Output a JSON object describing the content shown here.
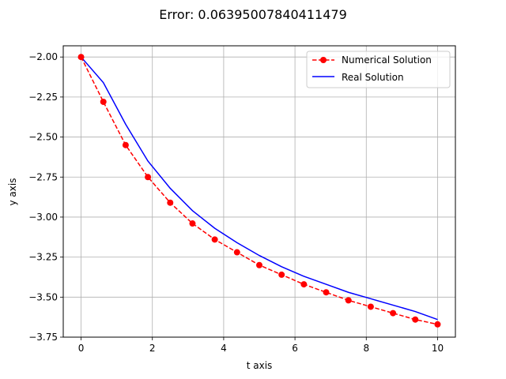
{
  "chart_data": {
    "type": "line",
    "title": "Error: 0.06395007840411479",
    "xlabel": "t axis",
    "ylabel": "y axis",
    "xlim": [
      -0.5,
      10.5
    ],
    "ylim": [
      -3.75,
      -1.93
    ],
    "x_ticks": [
      0,
      2,
      4,
      6,
      8,
      10
    ],
    "x_tick_labels": [
      "0",
      "2",
      "4",
      "6",
      "8",
      "10"
    ],
    "y_ticks": [
      -2.0,
      -2.25,
      -2.5,
      -2.75,
      -3.0,
      -3.25,
      -3.5,
      -3.75
    ],
    "y_tick_labels": [
      "−2.00",
      "−2.25",
      "−2.50",
      "−2.75",
      "−3.00",
      "−3.25",
      "−3.50",
      "−3.75"
    ],
    "grid": true,
    "legend_position": "top-right",
    "series": [
      {
        "name": "Numerical Solution",
        "color": "#ff0000",
        "style": "dashed-with-circle-markers",
        "x": [
          0,
          0.625,
          1.25,
          1.875,
          2.5,
          3.125,
          3.75,
          4.375,
          5.0,
          5.625,
          6.25,
          6.875,
          7.5,
          8.125,
          8.75,
          9.375,
          10.0
        ],
        "y": [
          -2.0,
          -2.28,
          -2.55,
          -2.75,
          -2.91,
          -3.04,
          -3.14,
          -3.22,
          -3.3,
          -3.36,
          -3.42,
          -3.47,
          -3.52,
          -3.56,
          -3.6,
          -3.64,
          -3.67
        ]
      },
      {
        "name": "Real Solution",
        "color": "#0000ff",
        "style": "solid",
        "x": [
          0,
          0.625,
          1.25,
          1.875,
          2.5,
          3.125,
          3.75,
          4.375,
          5.0,
          5.625,
          6.25,
          6.875,
          7.5,
          8.125,
          8.75,
          9.375,
          10.0
        ],
        "y": [
          -2.0,
          -2.16,
          -2.42,
          -2.65,
          -2.82,
          -2.96,
          -3.07,
          -3.16,
          -3.24,
          -3.31,
          -3.37,
          -3.42,
          -3.47,
          -3.51,
          -3.55,
          -3.59,
          -3.64
        ]
      }
    ]
  }
}
